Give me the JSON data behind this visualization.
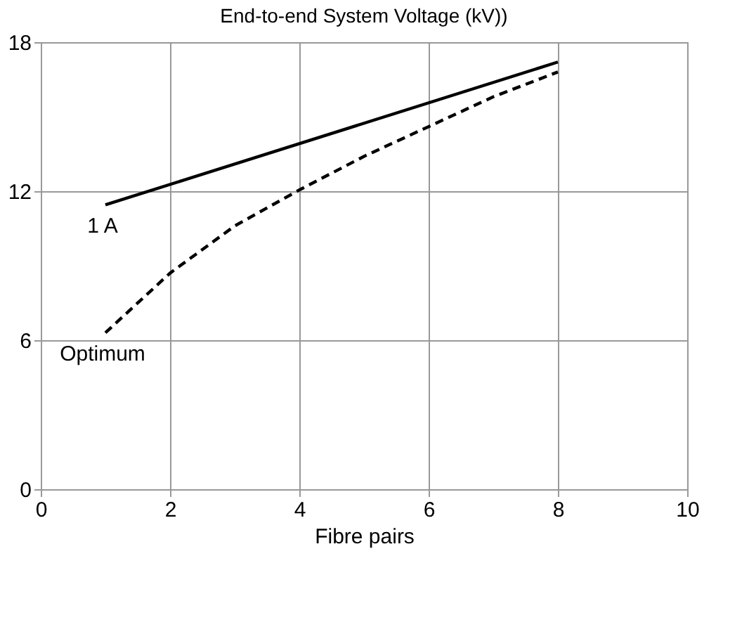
{
  "chart_data": {
    "type": "line",
    "title": "End-to-end System Voltage (kV))",
    "xlabel": "Fibre pairs",
    "xlim": [
      0,
      10
    ],
    "xticks": [
      0,
      2,
      4,
      6,
      8,
      10
    ],
    "ylim": [
      0,
      18
    ],
    "yticks": [
      0,
      6,
      12,
      18
    ],
    "grid": true,
    "marker": "none",
    "series": [
      {
        "name": "1 A",
        "color": "#000000",
        "line_style": "solid",
        "x": [
          1,
          8
        ],
        "values": [
          11.45,
          17.2
        ]
      },
      {
        "name": "Optimum",
        "color": "#000000",
        "line_style": "dashed",
        "x": [
          1,
          2,
          3,
          4,
          5,
          6,
          7,
          8
        ],
        "values": [
          6.3,
          8.7,
          10.6,
          12.05,
          13.4,
          14.6,
          15.8,
          16.8
        ]
      }
    ]
  }
}
